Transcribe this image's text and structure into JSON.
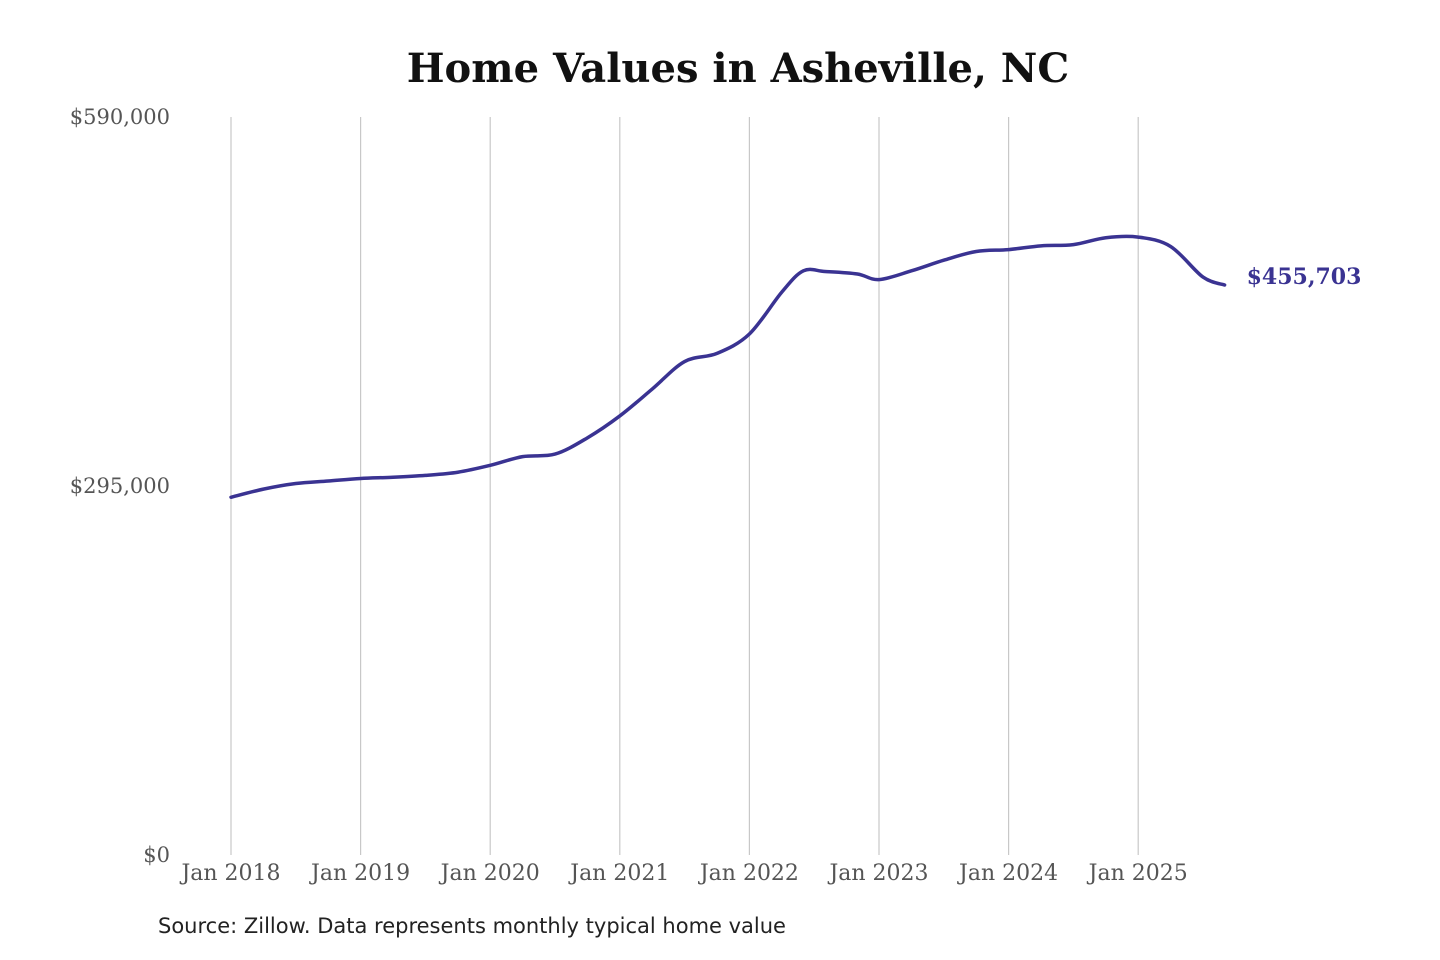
{
  "chart_data": {
    "type": "line",
    "title": "Home Values in Asheville, NC",
    "xlabel": "",
    "ylabel": "",
    "ylim": [
      0,
      590000
    ],
    "yticks": [
      {
        "value": 0,
        "label": "$0"
      },
      {
        "value": 295000,
        "label": "$295,000"
      },
      {
        "value": 590000,
        "label": "$590,000"
      }
    ],
    "xticks": [
      {
        "value": "2018-01",
        "label": "Jan 2018"
      },
      {
        "value": "2019-01",
        "label": "Jan 2019"
      },
      {
        "value": "2020-01",
        "label": "Jan 2020"
      },
      {
        "value": "2021-01",
        "label": "Jan 2021"
      },
      {
        "value": "2022-01",
        "label": "Jan 2022"
      },
      {
        "value": "2023-01",
        "label": "Jan 2023"
      },
      {
        "value": "2024-01",
        "label": "Jan 2024"
      },
      {
        "value": "2025-01",
        "label": "Jan 2025"
      }
    ],
    "xlim": [
      "2018-01",
      "2025-09"
    ],
    "grid": {
      "x": true,
      "y": false
    },
    "legend": "none",
    "series": [
      {
        "color": "#3a3392",
        "points": [
          {
            "x": "2018-01",
            "y": 286000
          },
          {
            "x": "2018-04",
            "y": 292500
          },
          {
            "x": "2018-07",
            "y": 297000
          },
          {
            "x": "2018-10",
            "y": 299000
          },
          {
            "x": "2019-01",
            "y": 301000
          },
          {
            "x": "2019-04",
            "y": 302000
          },
          {
            "x": "2019-07",
            "y": 303500
          },
          {
            "x": "2019-10",
            "y": 306000
          },
          {
            "x": "2020-01",
            "y": 311500
          },
          {
            "x": "2020-04",
            "y": 318500
          },
          {
            "x": "2020-07",
            "y": 320500
          },
          {
            "x": "2020-10",
            "y": 333500
          },
          {
            "x": "2021-01",
            "y": 351000
          },
          {
            "x": "2021-04",
            "y": 372500
          },
          {
            "x": "2021-07",
            "y": 394500
          },
          {
            "x": "2021-10",
            "y": 401000
          },
          {
            "x": "2022-01",
            "y": 416500
          },
          {
            "x": "2022-04",
            "y": 450000
          },
          {
            "x": "2022-06",
            "y": 467000
          },
          {
            "x": "2022-08",
            "y": 466500
          },
          {
            "x": "2022-11",
            "y": 464500
          },
          {
            "x": "2023-01",
            "y": 460000
          },
          {
            "x": "2023-04",
            "y": 467000
          },
          {
            "x": "2023-07",
            "y": 475500
          },
          {
            "x": "2023-10",
            "y": 482500
          },
          {
            "x": "2024-01",
            "y": 484000
          },
          {
            "x": "2024-04",
            "y": 487000
          },
          {
            "x": "2024-07",
            "y": 488000
          },
          {
            "x": "2024-10",
            "y": 493500
          },
          {
            "x": "2025-01",
            "y": 494000
          },
          {
            "x": "2025-04",
            "y": 486500
          },
          {
            "x": "2025-07",
            "y": 462000
          },
          {
            "x": "2025-09",
            "y": 455703
          }
        ]
      }
    ],
    "annotations": [
      {
        "x": "2025-09",
        "y": 455703,
        "text": "$455,703"
      }
    ]
  },
  "footer": {
    "source_note": "Source: Zillow. Data represents monthly typical home value"
  }
}
